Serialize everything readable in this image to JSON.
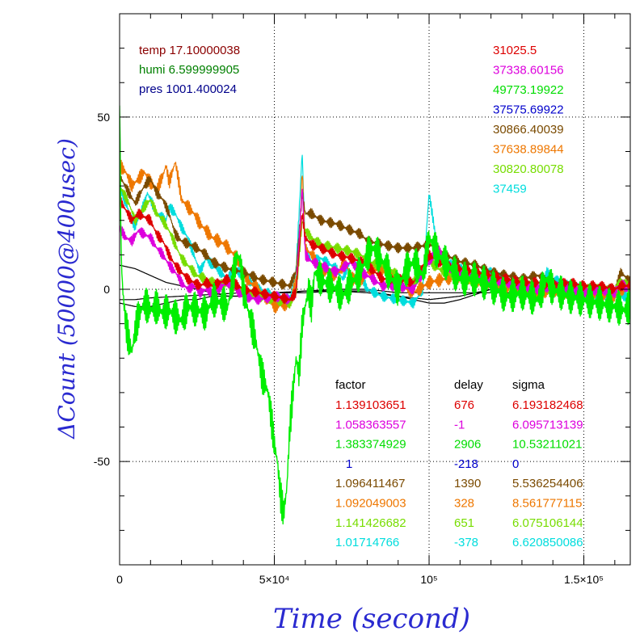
{
  "chart_data": {
    "type": "line",
    "title": "",
    "xlabel": "Time (second)",
    "ylabel": "ΔCount (50000@400usec)",
    "xlim": [
      0,
      165000
    ],
    "ylim": [
      -80,
      80
    ],
    "grid": true,
    "x_ticks": [
      {
        "value": 0,
        "label": "0"
      },
      {
        "value": 50000,
        "label": "5×10⁴"
      },
      {
        "value": 100000,
        "label": "10⁵"
      },
      {
        "value": 150000,
        "label": "1.5×10⁵"
      }
    ],
    "y_ticks": [
      {
        "value": 50,
        "label": "50"
      },
      {
        "value": 0,
        "label": "0"
      },
      {
        "value": -50,
        "label": "-50"
      }
    ],
    "env_notes": [
      {
        "text": "temp 17.10000038",
        "color": "#8b0000"
      },
      {
        "text": "humi 6.599999905",
        "color": "#008000"
      },
      {
        "text": "pres 1001.400024",
        "color": "#00008b"
      }
    ],
    "count_notes": [
      {
        "text": "31025.5",
        "color": "#dd0000"
      },
      {
        "text": "37338.60156",
        "color": "#dd00dd"
      },
      {
        "text": "49773.19922",
        "color": "#00dd00"
      },
      {
        "text": "37575.69922",
        "color": "#0000cc"
      },
      {
        "text": "30866.40039",
        "color": "#7a4a00"
      },
      {
        "text": "37638.89844",
        "color": "#ee7700"
      },
      {
        "text": "30820.80078",
        "color": "#77dd00"
      },
      {
        "text": "37459",
        "color": "#00dddd"
      }
    ],
    "table_headers": [
      "factor",
      "delay",
      "sigma"
    ],
    "table_rows": [
      {
        "factor": "1.139103651",
        "delay": "676",
        "sigma": "6.193182468",
        "color": "#dd0000"
      },
      {
        "factor": "1.058363557",
        "delay": "-1",
        "sigma": "6.095713139",
        "color": "#dd00dd"
      },
      {
        "factor": "1.383374929",
        "delay": "2906",
        "sigma": "10.53211021",
        "color": "#00dd00"
      },
      {
        "factor": "1",
        "delay": "-218",
        "sigma": "0",
        "color": "#0000cc"
      },
      {
        "factor": "1.096411467",
        "delay": "1390",
        "sigma": "5.536254406",
        "color": "#7a4a00"
      },
      {
        "factor": "1.092049003",
        "delay": "328",
        "sigma": "8.561777115",
        "color": "#ee7700"
      },
      {
        "factor": "1.141426682",
        "delay": "651",
        "sigma": "6.075106144",
        "color": "#77dd00"
      },
      {
        "factor": "1.01714766",
        "delay": "-378",
        "sigma": "6.620850086",
        "color": "#00dddd"
      }
    ],
    "series": [
      {
        "color": "#000000",
        "noise": 0,
        "x": [
          0,
          5000,
          10000,
          15000,
          20000,
          25000,
          30000,
          35000,
          40000,
          45000,
          50000,
          55000,
          60000,
          70000,
          80000,
          90000,
          100000,
          110000,
          120000,
          130000,
          140000,
          150000,
          160000,
          165000
        ],
        "y": [
          -4,
          -5,
          -5,
          -4,
          -3,
          -3,
          -2,
          -2,
          -2,
          -1.5,
          -1,
          -1,
          -0.5,
          0,
          0,
          -1,
          -1,
          -1,
          -1,
          -1,
          -1,
          -1,
          -0.5,
          0
        ]
      },
      {
        "color": "#000000",
        "noise": 0,
        "x": [
          0,
          5000,
          10000,
          15000,
          20000,
          25000,
          30000,
          35000,
          40000,
          45000,
          50000,
          55000,
          60000,
          70000,
          80000,
          90000,
          95000,
          100000,
          105000,
          110000,
          120000,
          130000,
          140000,
          150000,
          160000,
          165000
        ],
        "y": [
          7,
          6,
          4,
          2,
          1,
          0,
          -1,
          -2,
          -2,
          -2,
          -1,
          -1,
          -1,
          -0.5,
          -0.5,
          -2,
          -3,
          -4,
          -4,
          -3,
          0,
          1,
          0,
          0,
          0,
          0
        ]
      },
      {
        "color": "#000000",
        "noise": 0,
        "x": [
          0,
          5000,
          10000,
          20000,
          30000,
          40000,
          50000,
          60000,
          70000,
          80000,
          90000,
          100000,
          110000,
          120000,
          130000,
          140000,
          150000,
          160000,
          165000
        ],
        "y": [
          -3,
          -3,
          -2.5,
          -2,
          -1.5,
          -1,
          -1,
          -0.5,
          -0.5,
          -1,
          -2,
          -3,
          -2,
          0,
          1,
          0,
          -0.5,
          -0.5,
          -0.5
        ]
      },
      {
        "color": "#00dddd",
        "noise": 1.5,
        "x": [
          0,
          2000,
          5000,
          8000,
          9000,
          10000,
          12000,
          15000,
          16000,
          18000,
          20000,
          22000,
          24000,
          26000,
          28000,
          30000,
          35000,
          37000,
          40000,
          45000,
          50000,
          55000,
          57000,
          59000,
          60000,
          62000,
          65000,
          70000,
          72000,
          75000,
          78000,
          80000,
          85000,
          90000,
          95000,
          98000,
          99000,
          100000,
          103000,
          105000,
          110000,
          115000,
          120000,
          125000,
          130000,
          135000,
          138000,
          140000,
          145000,
          150000,
          155000,
          160000,
          162000,
          165000
        ],
        "y": [
          30,
          25,
          18,
          25,
          28,
          26,
          22,
          20,
          24,
          22,
          18,
          15,
          10,
          5,
          9,
          7,
          3,
          6,
          4,
          0,
          -2,
          -3,
          5,
          40,
          12,
          8,
          9,
          6,
          3,
          9,
          4,
          0,
          -2,
          -3,
          -4,
          0,
          15,
          28,
          10,
          8,
          6,
          3,
          5,
          2,
          0,
          -2,
          5,
          3,
          1,
          0,
          -2,
          -1,
          -2,
          -2
        ]
      },
      {
        "color": "#ee7700",
        "noise": 2,
        "x": [
          0,
          2000,
          4000,
          6000,
          8000,
          10000,
          12000,
          14000,
          15000,
          16000,
          17000,
          18000,
          19000,
          20000,
          22000,
          24000,
          26000,
          28000,
          30000,
          32000,
          34000,
          35000,
          36000,
          38000,
          40000,
          42000,
          45000,
          48000,
          50000,
          55000,
          57000,
          58000,
          59000,
          60000,
          62000,
          65000,
          70000,
          73000,
          75000,
          78000,
          80000,
          85000,
          90000,
          95000,
          100000,
          105000,
          110000,
          115000,
          120000,
          125000,
          130000,
          135000,
          140000,
          145000,
          150000,
          155000,
          160000,
          162000,
          165000
        ],
        "y": [
          36,
          34,
          30,
          32,
          34,
          31,
          29,
          33,
          36,
          31,
          34,
          37,
          32,
          26,
          24,
          22,
          19,
          17,
          15,
          14,
          13,
          12,
          11,
          9,
          5,
          2,
          0,
          -3,
          -5,
          -4,
          2,
          10,
          35,
          12,
          10,
          6,
          4,
          8,
          3,
          3,
          5,
          6,
          2,
          -1,
          2,
          3,
          4,
          3,
          2,
          1,
          0,
          -1,
          0,
          -1,
          -1,
          -1,
          -2,
          0,
          1
        ]
      },
      {
        "color": "#7a4a00",
        "noise": 1.5,
        "x": [
          0,
          3000,
          5000,
          8000,
          10000,
          12000,
          14000,
          16000,
          18000,
          20000,
          25000,
          28000,
          30000,
          35000,
          40000,
          45000,
          50000,
          55000,
          57000,
          59000,
          60000,
          62000,
          65000,
          70000,
          75000,
          78000,
          80000,
          85000,
          90000,
          95000,
          100000,
          103000,
          105000,
          110000,
          115000,
          120000,
          125000,
          130000,
          135000,
          140000,
          145000,
          150000,
          155000,
          160000,
          162000,
          165000
        ],
        "y": [
          33,
          28,
          25,
          30,
          32,
          28,
          26,
          22,
          16,
          14,
          12,
          10,
          8,
          6,
          5,
          3,
          2,
          1,
          5,
          28,
          22,
          22,
          20,
          19,
          17,
          16,
          14,
          13,
          12,
          12,
          13,
          12,
          10,
          8,
          7,
          5,
          4,
          3,
          4,
          2,
          1,
          0,
          0,
          0,
          5,
          2
        ]
      },
      {
        "color": "#77dd00",
        "noise": 1.5,
        "x": [
          0,
          3000,
          5000,
          8000,
          10000,
          12000,
          14000,
          16000,
          18000,
          20000,
          25000,
          28000,
          30000,
          35000,
          40000,
          45000,
          50000,
          55000,
          57000,
          59000,
          60000,
          62000,
          65000,
          70000,
          75000,
          78000,
          80000,
          85000,
          90000,
          95000,
          100000,
          103000,
          105000,
          110000,
          115000,
          120000,
          125000,
          130000,
          135000,
          140000,
          145000,
          150000,
          155000,
          160000,
          162000,
          165000
        ],
        "y": [
          30,
          25,
          20,
          24,
          26,
          22,
          20,
          17,
          13,
          9,
          4,
          3,
          2,
          1,
          -1,
          -2,
          -3,
          -4,
          -2,
          20,
          17,
          15,
          13,
          12,
          11,
          10,
          8,
          7,
          4,
          2,
          8,
          6,
          5,
          3,
          2,
          2,
          1,
          2,
          0,
          0,
          -1,
          0,
          0,
          -1,
          3,
          0
        ]
      },
      {
        "color": "#dd00dd",
        "noise": 1.5,
        "x": [
          0,
          2000,
          4000,
          6000,
          8000,
          10000,
          12000,
          14000,
          16000,
          18000,
          20000,
          22000,
          24000,
          26000,
          28000,
          30000,
          35000,
          40000,
          45000,
          50000,
          55000,
          57000,
          59000,
          60000,
          62000,
          65000,
          70000,
          75000,
          78000,
          80000,
          85000,
          90000,
          95000,
          100000,
          103000,
          105000,
          110000,
          115000,
          120000,
          125000,
          130000,
          135000,
          140000,
          145000,
          150000,
          155000,
          160000,
          162000,
          165000
        ],
        "y": [
          18,
          15,
          14,
          17,
          16,
          15,
          12,
          10,
          7,
          5,
          2,
          0,
          1,
          -1,
          0,
          -1,
          2,
          -2,
          -3,
          -2,
          -3,
          -1,
          30,
          10,
          8,
          7,
          5,
          8,
          5,
          4,
          1,
          1,
          0,
          8,
          12,
          7,
          5,
          4,
          3,
          2,
          1,
          0,
          1,
          0,
          -1,
          0,
          -1,
          2,
          -1
        ]
      },
      {
        "color": "#dd0000",
        "noise": 1.5,
        "x": [
          0,
          2000,
          4000,
          6000,
          8000,
          10000,
          12000,
          14000,
          16000,
          18000,
          20000,
          22000,
          24000,
          26000,
          28000,
          30000,
          35000,
          40000,
          45000,
          50000,
          55000,
          57000,
          59000,
          60000,
          62000,
          65000,
          70000,
          75000,
          78000,
          80000,
          85000,
          90000,
          95000,
          100000,
          103000,
          105000,
          110000,
          115000,
          120000,
          125000,
          130000,
          135000,
          140000,
          145000,
          150000,
          155000,
          160000,
          162000,
          165000
        ],
        "y": [
          26,
          23,
          20,
          22,
          21,
          20,
          16,
          14,
          10,
          7,
          5,
          3,
          2,
          1,
          2,
          1,
          3,
          0,
          -1,
          -2,
          -3,
          -1,
          22,
          15,
          13,
          12,
          10,
          9,
          8,
          7,
          3,
          3,
          2,
          10,
          8,
          7,
          6,
          5,
          4,
          3,
          2,
          2,
          1,
          2,
          1,
          1,
          0,
          1,
          1
        ]
      },
      {
        "color": "#00ee00",
        "noise": 5,
        "x": [
          0,
          500,
          1000,
          1500,
          2000,
          3000,
          4000,
          5000,
          6000,
          7000,
          8000,
          9000,
          10000,
          12000,
          14000,
          16000,
          18000,
          20000,
          22000,
          25000,
          28000,
          30000,
          33000,
          35000,
          37000,
          38000,
          39000,
          40000,
          42000,
          44000,
          46000,
          48000,
          50000,
          51000,
          52000,
          53000,
          54000,
          55000,
          56000,
          57000,
          58000,
          59000,
          60000,
          61000,
          62000,
          63000,
          65000,
          68000,
          70000,
          72000,
          75000,
          78000,
          80000,
          82000,
          85000,
          88000,
          90000,
          92000,
          95000,
          98000,
          100000,
          103000,
          105000,
          108000,
          110000,
          115000,
          120000,
          125000,
          130000,
          135000,
          138000,
          140000,
          145000,
          150000,
          155000,
          160000,
          163000,
          165000
        ],
        "y": [
          57,
          10,
          0,
          -5,
          -10,
          -15,
          -18,
          -12,
          -8,
          -6,
          -4,
          -5,
          -6,
          -5,
          -7,
          -6,
          -8,
          -9,
          -5,
          -6,
          -7,
          -3,
          -4,
          -5,
          5,
          10,
          8,
          0,
          -8,
          -15,
          -25,
          -30,
          -45,
          -50,
          -60,
          -65,
          -58,
          -40,
          -30,
          -20,
          -25,
          -10,
          -5,
          0,
          -5,
          5,
          3,
          1,
          0,
          -2,
          2,
          5,
          10,
          12,
          8,
          3,
          0,
          5,
          8,
          4,
          15,
          10,
          8,
          5,
          3,
          3,
          1,
          -2,
          -1,
          -3,
          3,
          0,
          -2,
          -3,
          -4,
          -5,
          -6,
          -5
        ]
      }
    ]
  }
}
